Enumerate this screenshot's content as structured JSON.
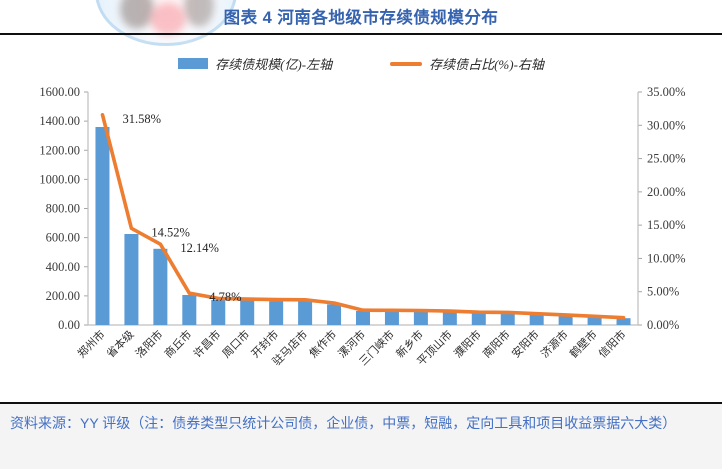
{
  "header": {
    "title": "图表 4 河南各地级市存续债规模分布"
  },
  "legend": [
    {
      "label": "存续债规模(亿)-左轴",
      "type": "bar",
      "color": "#5B9BD5"
    },
    {
      "label": "存续债占比(%)-右轴",
      "type": "line",
      "color": "#ED7D31"
    }
  ],
  "chart_data": {
    "type": "bar+line combo",
    "title": "图表 4 河南各地级市存续债规模分布",
    "categories": [
      "郑州市",
      "省本级",
      "洛阳市",
      "商丘市",
      "许昌市",
      "周口市",
      "开封市",
      "驻马店市",
      "焦作市",
      "漯河市",
      "三门峡市",
      "新乡市",
      "平顶山市",
      "濮阳市",
      "南阳市",
      "安阳市",
      "济源市",
      "鹤壁市",
      "信阳市"
    ],
    "series": [
      {
        "name": "存续债规模(亿)-左轴",
        "type": "bar",
        "axis": "left",
        "color": "#5B9BD5",
        "values": [
          1360,
          625,
          523,
          206,
          172,
          168,
          164,
          163,
          142,
          96,
          95,
          94,
          90,
          83,
          82,
          73,
          65,
          56,
          47
        ]
      },
      {
        "name": "存续债占比(%)-右轴",
        "type": "line",
        "axis": "right",
        "color": "#ED7D31",
        "values": [
          31.58,
          14.52,
          12.14,
          4.78,
          3.99,
          3.9,
          3.81,
          3.79,
          3.3,
          2.23,
          2.21,
          2.18,
          2.09,
          1.93,
          1.9,
          1.7,
          1.51,
          1.3,
          1.09
        ]
      }
    ],
    "point_labels": [
      {
        "index": 0,
        "text": "31.58%"
      },
      {
        "index": 1,
        "text": "14.52%"
      },
      {
        "index": 2,
        "text": "12.14%"
      },
      {
        "index": 3,
        "text": "4.78%"
      }
    ],
    "left_axis": {
      "min": 0,
      "max": 1600,
      "step": 200,
      "suffix": ""
    },
    "right_axis": {
      "min": 0,
      "max": 35,
      "step": 5,
      "suffix": "%"
    },
    "grid": false,
    "legend_position": "top"
  },
  "footer": {
    "source_note": "资料来源：YY 评级（注：债券类型只统计公司债，企业债，中票，短融，定向工具和项目收益票据六大类）"
  }
}
